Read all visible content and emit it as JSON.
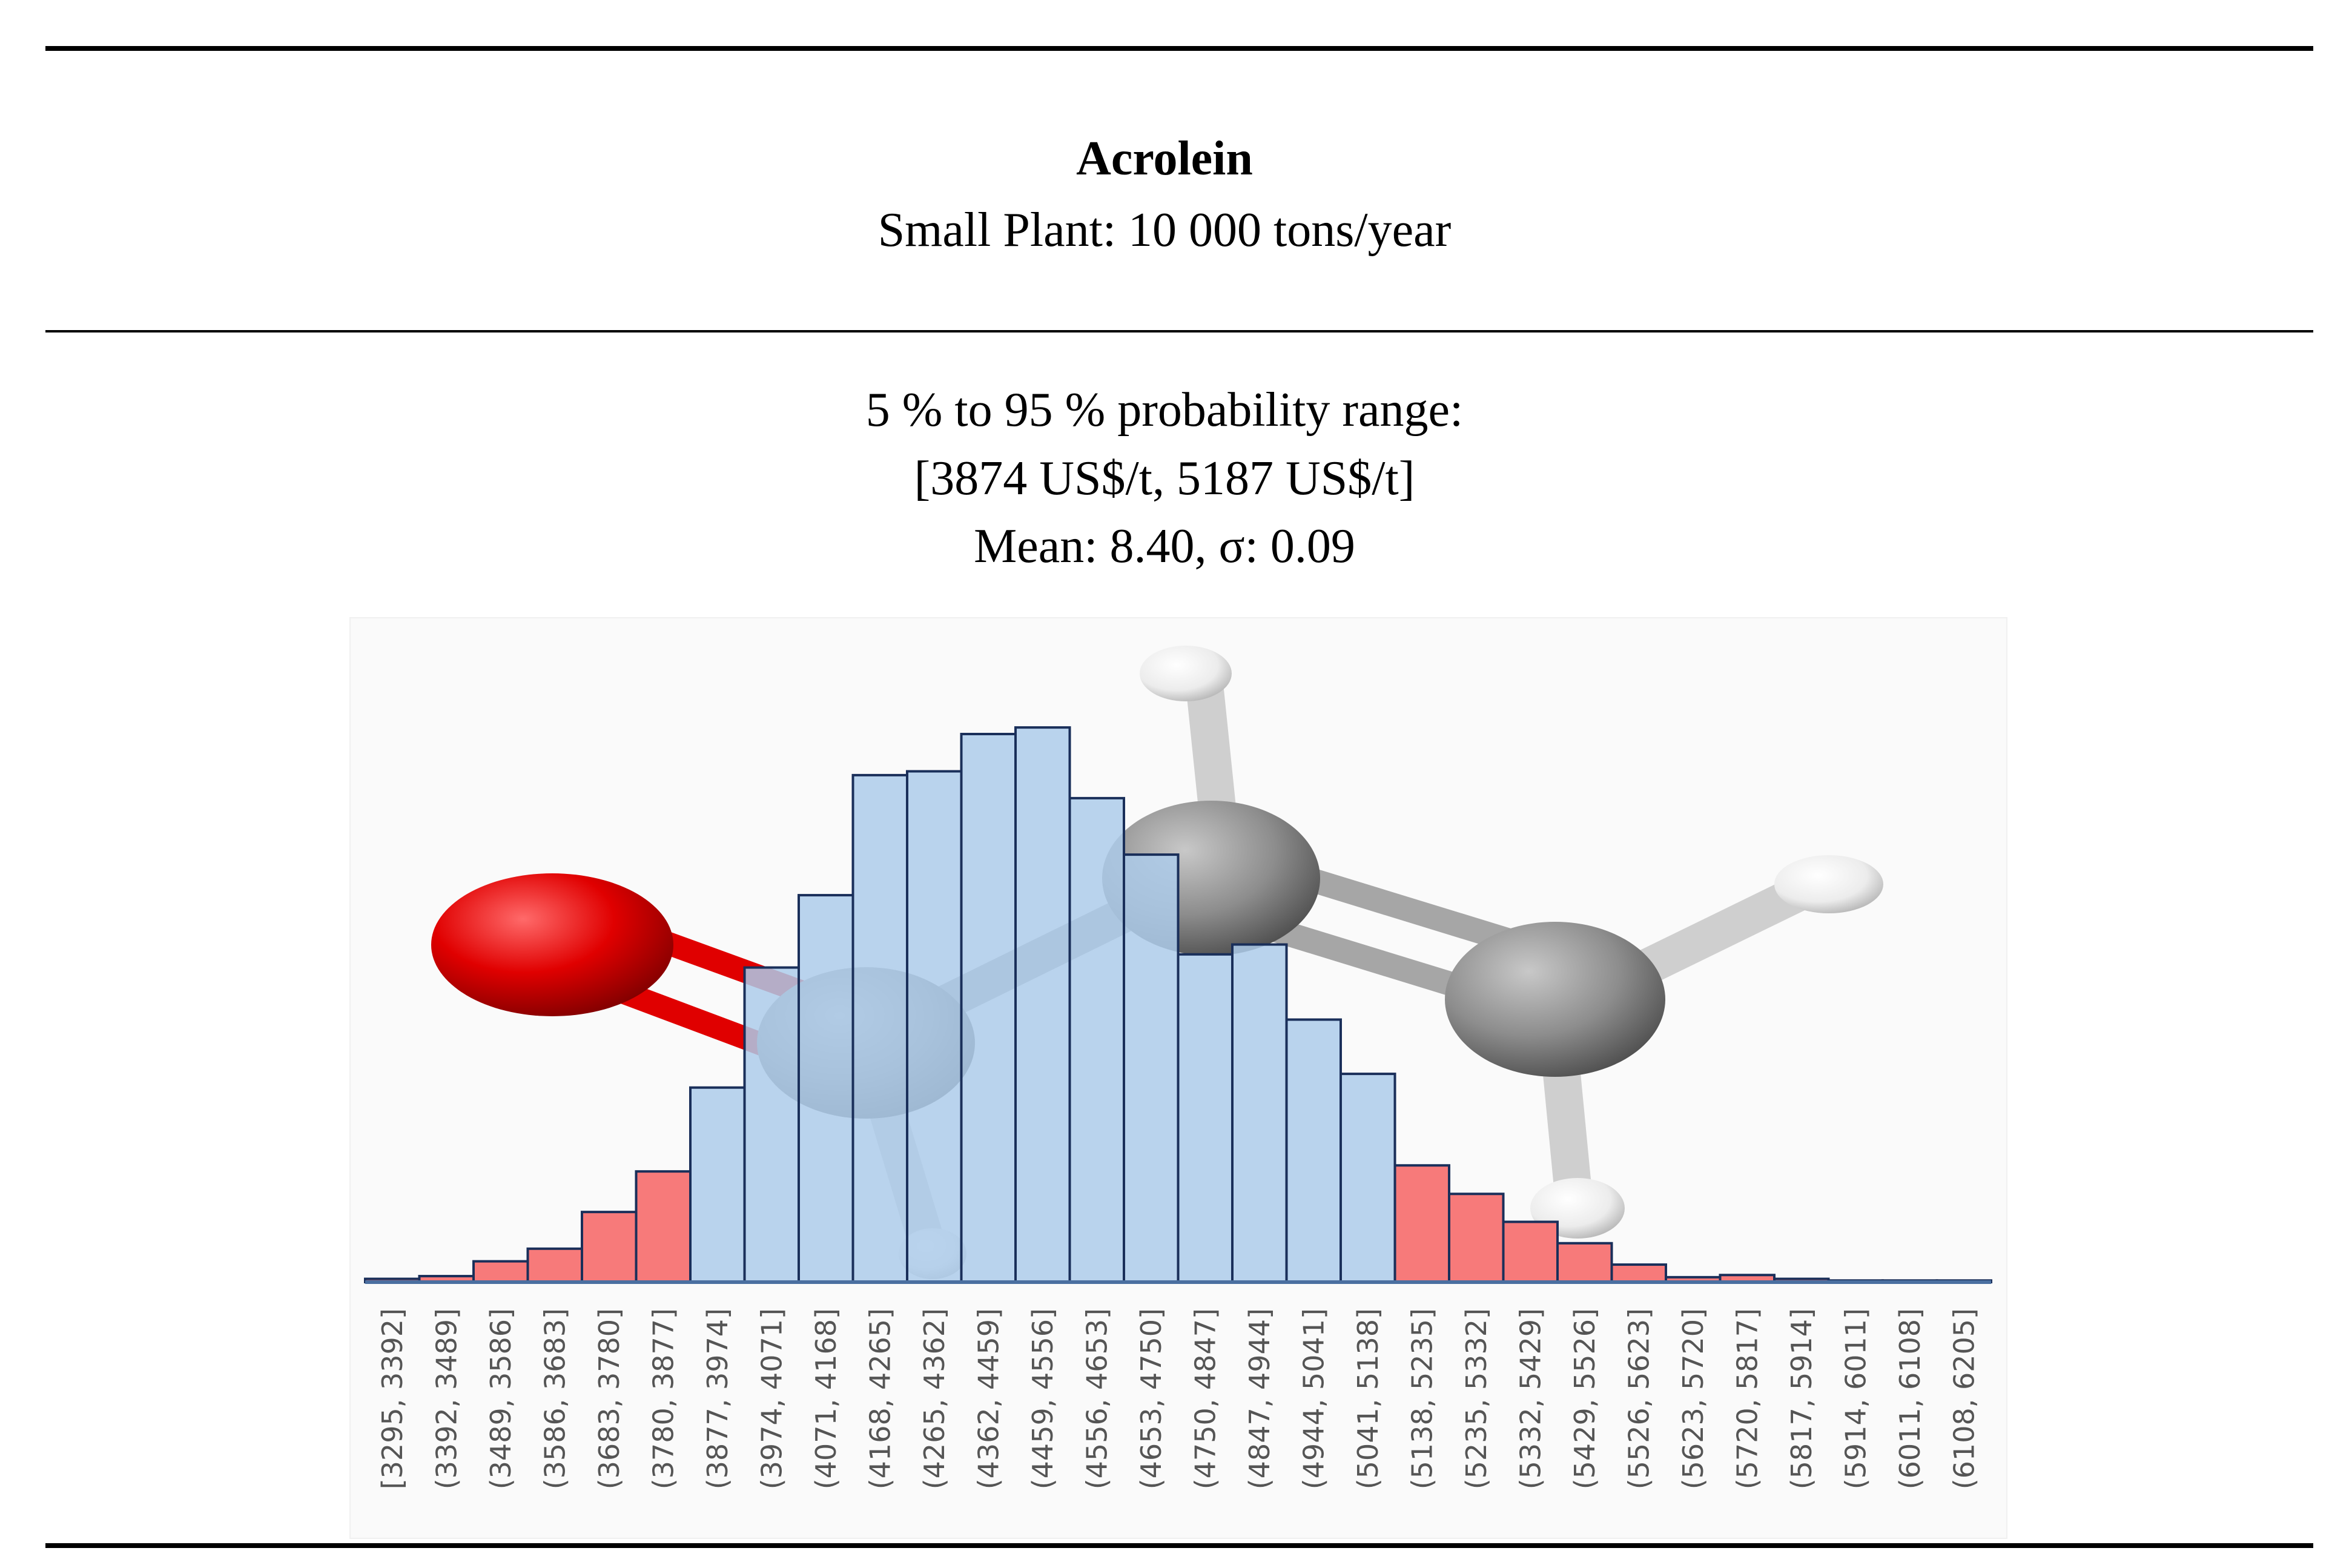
{
  "header": {
    "compound": "Acrolein",
    "plant": "Small Plant: 10 000 tons/year"
  },
  "stats": {
    "range_label": "5 % to 95 % probability range:",
    "range_value": "[3874 US$/t, 5187 US$/t]",
    "mean_sigma": "Mean: 8.40, σ: 0.09"
  },
  "colors": {
    "in_range": "#adcbea",
    "tail": "#f77a7a",
    "bar_stroke": "#1a2f5a",
    "axis": "#4a6fa0"
  },
  "molecule_icon": "acrolein-ball-and-stick-model",
  "chart_data": {
    "type": "bar",
    "title": "Acrolein",
    "xlabel": "",
    "ylabel": "",
    "ylim": [
      0,
      1000
    ],
    "categories": [
      "[3295, 3392]",
      "(3392, 3489]",
      "(3489, 3586]",
      "(3586, 3683]",
      "(3683, 3780]",
      "(3780, 3877]",
      "(3877, 3974]",
      "(3974, 4071]",
      "(4071, 4168]",
      "(4168, 4265]",
      "(4265, 4362]",
      "(4362, 4459]",
      "(4459, 4556]",
      "(4556, 4653]",
      "(4653, 4750]",
      "(4750, 4847]",
      "(4847, 4944]",
      "(4944, 5041]",
      "(5041, 5138]",
      "(5138, 5235]",
      "(5235, 5332]",
      "(5332, 5429]",
      "(5429, 5526]",
      "(5526, 5623]",
      "(5623, 5720]",
      "(5720, 5817]",
      "(5817, 5914]",
      "(5914, 6011]",
      "(6011, 6108]",
      "(6108, 6205]"
    ],
    "values": [
      6,
      11,
      38,
      61,
      128,
      202,
      355,
      574,
      706,
      925,
      932,
      1000,
      1012,
      883,
      780,
      598,
      616,
      479,
      380,
      213,
      161,
      110,
      71,
      32,
      9,
      13,
      6,
      3,
      3,
      3
    ],
    "series_segments": [
      "tail",
      "tail",
      "tail",
      "tail",
      "tail",
      "tail",
      "in_range",
      "in_range",
      "in_range",
      "in_range",
      "in_range",
      "in_range",
      "in_range",
      "in_range",
      "in_range",
      "in_range",
      "in_range",
      "in_range",
      "in_range",
      "tail",
      "tail",
      "tail",
      "tail",
      "tail",
      "tail",
      "tail",
      "tail",
      "tail",
      "tail",
      "tail"
    ]
  }
}
